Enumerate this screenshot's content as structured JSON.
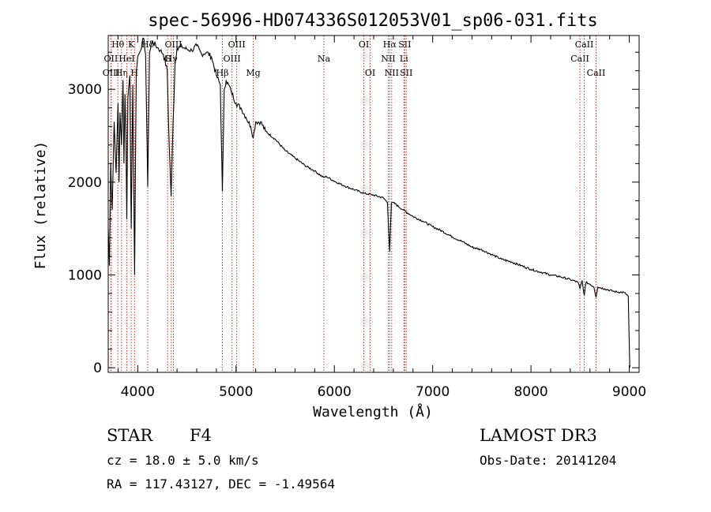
{
  "chart_data": {
    "type": "line",
    "title": "spec-56996-HD074336S012053V01_sp06-031.fits",
    "xlabel": "Wavelength (Å)",
    "ylabel": "Flux (relative)",
    "xlim": [
      3700,
      9100
    ],
    "ylim": [
      -50,
      3580
    ],
    "xticks": [
      4000,
      5000,
      6000,
      7000,
      8000,
      9000
    ],
    "yticks": [
      0,
      1000,
      2000,
      3000
    ],
    "xtick_labels": [
      "4000",
      "5000",
      "6000",
      "7000",
      "8000",
      "9000"
    ],
    "ytick_labels": [
      "0",
      "1000",
      "2000",
      "3000"
    ],
    "series": [
      {
        "name": "flux",
        "x": [
          3700,
          3712,
          3725,
          3740,
          3760,
          3780,
          3800,
          3810,
          3820,
          3835,
          3850,
          3860,
          3870,
          3880,
          3889,
          3900,
          3920,
          3934,
          3950,
          3968,
          3985,
          4000,
          4020,
          4045,
          4060,
          4080,
          4102,
          4120,
          4150,
          4200,
          4230,
          4260,
          4300,
          4320,
          4340,
          4360,
          4380,
          4400,
          4450,
          4500,
          4550,
          4600,
          4650,
          4700,
          4750,
          4800,
          4840,
          4861,
          4880,
          4900,
          4950,
          5000,
          5050,
          5100,
          5150,
          5175,
          5200,
          5250,
          5300,
          5400,
          5500,
          5600,
          5700,
          5800,
          5890,
          5920,
          6000,
          6100,
          6200,
          6300,
          6400,
          6500,
          6540,
          6563,
          6580,
          6600,
          6700,
          6800,
          6900,
          7000,
          7100,
          7200,
          7300,
          7400,
          7500,
          7600,
          7700,
          7800,
          7900,
          8000,
          8100,
          8200,
          8300,
          8400,
          8480,
          8498,
          8520,
          8542,
          8560,
          8600,
          8640,
          8662,
          8680,
          8750,
          8850,
          8950,
          8990,
          9005
        ],
        "y": [
          1500,
          1100,
          2200,
          1700,
          2650,
          2100,
          2850,
          2000,
          2750,
          2400,
          3100,
          2200,
          2950,
          2500,
          1600,
          2900,
          3150,
          1500,
          3050,
          1000,
          3200,
          3350,
          3400,
          3500,
          3550,
          3380,
          1950,
          3400,
          3520,
          3450,
          3420,
          3380,
          3200,
          2400,
          1850,
          2650,
          3280,
          3450,
          3460,
          3430,
          3420,
          3470,
          3380,
          3400,
          3350,
          3150,
          3050,
          1900,
          3000,
          3100,
          2980,
          2850,
          2800,
          2700,
          2600,
          2480,
          2650,
          2650,
          2550,
          2460,
          2340,
          2260,
          2180,
          2120,
          2050,
          2060,
          2010,
          1960,
          1920,
          1880,
          1860,
          1830,
          1780,
          1250,
          1770,
          1780,
          1700,
          1630,
          1580,
          1520,
          1470,
          1410,
          1360,
          1300,
          1270,
          1220,
          1170,
          1140,
          1100,
          1060,
          1030,
          1000,
          980,
          950,
          920,
          850,
          940,
          780,
          920,
          900,
          870,
          760,
          870,
          850,
          820,
          810,
          770,
          0
        ]
      }
    ],
    "line_markers": [
      {
        "name": "Hθ",
        "x": 3798,
        "row": 1
      },
      {
        "name": "OII",
        "x": 3727,
        "row": 2
      },
      {
        "name": "OIII",
        "x": 3730,
        "row": 3
      },
      {
        "name": "Hη",
        "x": 3835,
        "row": 3
      },
      {
        "name": "HeI",
        "x": 3889,
        "row": 2
      },
      {
        "name": "K",
        "x": 3934,
        "row": 1
      },
      {
        "name": "H",
        "x": 3968,
        "row": 3
      },
      {
        "name": "Hδ",
        "x": 4102,
        "row": 1
      },
      {
        "name": "G",
        "x": 4304,
        "row": 2
      },
      {
        "name": "OIII",
        "x": 4363,
        "row": 1
      },
      {
        "name": "Hγ",
        "x": 4341,
        "row": 2
      },
      {
        "name": "Hβ",
        "x": 4861,
        "row": 3
      },
      {
        "name": "OIII",
        "x": 4959,
        "row": 2
      },
      {
        "name": "OIII",
        "x": 5007,
        "row": 1
      },
      {
        "name": "Mg",
        "x": 5175,
        "row": 3
      },
      {
        "name": "Na",
        "x": 5893,
        "row": 2
      },
      {
        "name": "OI",
        "x": 6300,
        "row": 1
      },
      {
        "name": "OI",
        "x": 6364,
        "row": 3
      },
      {
        "name": "NII",
        "x": 6548,
        "row": 2
      },
      {
        "name": "Hα",
        "x": 6563,
        "row": 1
      },
      {
        "name": "NII",
        "x": 6583,
        "row": 3
      },
      {
        "name": "SII",
        "x": 6716,
        "row": 1
      },
      {
        "name": "Li",
        "x": 6708,
        "row": 2
      },
      {
        "name": "SII",
        "x": 6731,
        "row": 3
      },
      {
        "name": "CaII",
        "x": 8498,
        "row": 2
      },
      {
        "name": "CaII",
        "x": 8542,
        "row": 1
      },
      {
        "name": "CaII",
        "x": 8662,
        "row": 3
      }
    ]
  },
  "info": {
    "class": "STAR",
    "subclass": "F4",
    "survey": "LAMOST DR3",
    "cz": "cz = 18.0 ± 5.0 km/s",
    "obs_date": "Obs-Date: 20141204",
    "radec": "RA = 117.43127, DEC =  -1.49564"
  }
}
